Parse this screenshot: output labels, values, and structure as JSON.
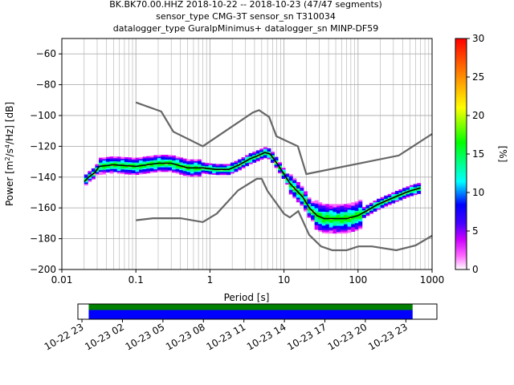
{
  "title_lines": [
    "BK.BK70.00.HHZ   2018-10-22 -- 2018-10-23  (47/47 segments)",
    "sensor_type CMG-3T sensor_sn T310034",
    "datalogger_type GuralpMinimus+ datalogger_sn MINP-DF59"
  ],
  "chart_data": {
    "type": "heatmap",
    "xlabel": "Period [s]",
    "ylabel_parts": [
      "Power [m",
      "2",
      "/s",
      "4",
      "/Hz] [dB]"
    ],
    "xscale": "log",
    "xlim": [
      0.01,
      1000
    ],
    "ylim": [
      -200,
      -50
    ],
    "xticks": [
      0.01,
      0.1,
      1,
      10,
      100,
      1000
    ],
    "xtick_labels": [
      "0.01",
      "0.1",
      "1",
      "10",
      "100",
      "1000"
    ],
    "yticks": [
      -200,
      -180,
      -160,
      -140,
      -120,
      -100,
      -80,
      -60
    ],
    "ytick_labels": [
      "−200",
      "−180",
      "−160",
      "−140",
      "−120",
      "−100",
      "−80",
      "−60"
    ],
    "grid": true,
    "colorbar": {
      "label": "[%]",
      "range": [
        0,
        30
      ],
      "ticks": [
        0,
        5,
        10,
        15,
        20,
        25,
        30
      ],
      "tick_labels": [
        "0",
        "5",
        "10",
        "15",
        "20",
        "25",
        "30"
      ]
    },
    "noise_models": {
      "NHNM": [
        [
          0.1,
          -91.5
        ],
        [
          0.22,
          -97.4
        ],
        [
          0.32,
          -110.5
        ],
        [
          0.8,
          -120
        ],
        [
          3.8,
          -98
        ],
        [
          4.6,
          -96.5
        ],
        [
          6.3,
          -101
        ],
        [
          7.9,
          -113.5
        ],
        [
          15.4,
          -120
        ],
        [
          20,
          -138
        ],
        [
          354.8,
          -126
        ],
        [
          1000,
          -112
        ]
      ],
      "NLNM": [
        [
          0.1,
          -168
        ],
        [
          0.17,
          -166.7
        ],
        [
          0.4,
          -166.7
        ],
        [
          0.8,
          -169.2
        ],
        [
          1.24,
          -163.7
        ],
        [
          2.4,
          -148.6
        ],
        [
          4.3,
          -141.1
        ],
        [
          5,
          -141.1
        ],
        [
          6,
          -149
        ],
        [
          10,
          -163.8
        ],
        [
          12,
          -166.2
        ],
        [
          15.6,
          -162.1
        ],
        [
          21.9,
          -177.5
        ],
        [
          31.6,
          -185
        ],
        [
          45,
          -187.5
        ],
        [
          70,
          -187.5
        ],
        [
          101,
          -185
        ],
        [
          154,
          -185
        ],
        [
          328,
          -187.5
        ],
        [
          600,
          -184.4
        ],
        [
          1000,
          -178
        ]
      ]
    },
    "mean_psd": [
      [
        0.02,
        -143
      ],
      [
        0.023,
        -140
      ],
      [
        0.028,
        -137
      ],
      [
        0.032,
        -133
      ],
      [
        0.05,
        -132
      ],
      [
        0.1,
        -133
      ],
      [
        0.2,
        -131
      ],
      [
        0.3,
        -131
      ],
      [
        0.5,
        -134
      ],
      [
        0.8,
        -134
      ],
      [
        1.2,
        -135
      ],
      [
        1.8,
        -135
      ],
      [
        2.5,
        -132
      ],
      [
        3.5,
        -128
      ],
      [
        4.5,
        -126
      ],
      [
        5.5,
        -124
      ],
      [
        6.5,
        -125
      ],
      [
        8,
        -131
      ],
      [
        10,
        -138
      ],
      [
        12,
        -144
      ],
      [
        15,
        -149
      ],
      [
        18,
        -153
      ],
      [
        22,
        -160
      ],
      [
        28,
        -165
      ],
      [
        35,
        -167
      ],
      [
        50,
        -167
      ],
      [
        70,
        -167
      ],
      [
        100,
        -165
      ],
      [
        130,
        -162
      ],
      [
        180,
        -158
      ],
      [
        250,
        -155
      ],
      [
        350,
        -152
      ],
      [
        500,
        -149
      ],
      [
        700,
        -147
      ]
    ],
    "coverage": {
      "green_track": [
        [
          "10-22 23:30",
          "10-23 23:30"
        ]
      ],
      "blue_track": [
        [
          "10-22 23:30",
          "10-23 23:30"
        ]
      ]
    },
    "time_axis": {
      "start": "10-22 22:42",
      "end": "10-24 01:18",
      "tick_labels": [
        "10-22 23",
        "10-23 02",
        "10-23 05",
        "10-23 08",
        "10-23 11",
        "10-23 14",
        "10-23 17",
        "10-23 20",
        "10-23 23"
      ]
    }
  }
}
